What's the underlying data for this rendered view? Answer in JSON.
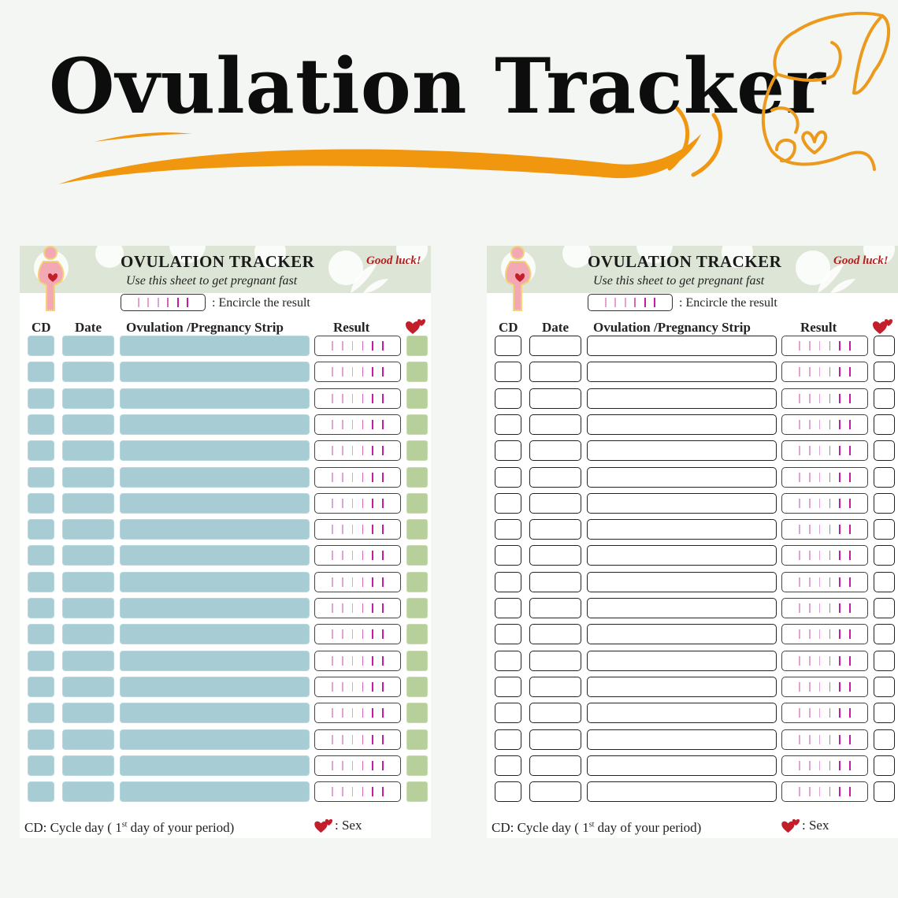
{
  "main_title": "Ovulation Tracker",
  "colors": {
    "accent_orange": "#f0960f",
    "left_cell_blue": "#a8ccd4",
    "left_cell_green": "#b7cf9b",
    "header_bg": "#dde6d6",
    "heart_red": "#c21f2b",
    "strip_pink": "#c41ba6"
  },
  "icons": [
    "pregnant-woman-icon",
    "heart-icon",
    "mother-silhouette-icon"
  ],
  "sheets": [
    {
      "variant": "color",
      "title": "OVULATION TRACKER",
      "subtitle": "Use this sheet to get pregnant fast",
      "good_luck": "Good luck!",
      "legend_text": ":  Encircle the result",
      "columns": {
        "cd": "CD",
        "date": "Date",
        "strip": "Ovulation /Pregnancy Strip",
        "result": "Result"
      },
      "row_count": 18,
      "footer": {
        "prefix": "CD: Cycle day ( 1",
        "sup": "st",
        "suffix": " day of  your period)",
        "sex_label": ": Sex"
      }
    },
    {
      "variant": "outline",
      "title": "OVULATION TRACKER",
      "subtitle": "Use this sheet to get pregnant fast",
      "good_luck": "Good luck!",
      "legend_text": ":  Encircle the result",
      "columns": {
        "cd": "CD",
        "date": "Date",
        "strip": "Ovulation /Pregnancy Strip",
        "result": "Result"
      },
      "row_count": 18,
      "footer": {
        "prefix": "CD: Cycle day ( 1",
        "sup": "st",
        "suffix": " day of  your period)",
        "sex_label": ": Sex"
      }
    }
  ]
}
